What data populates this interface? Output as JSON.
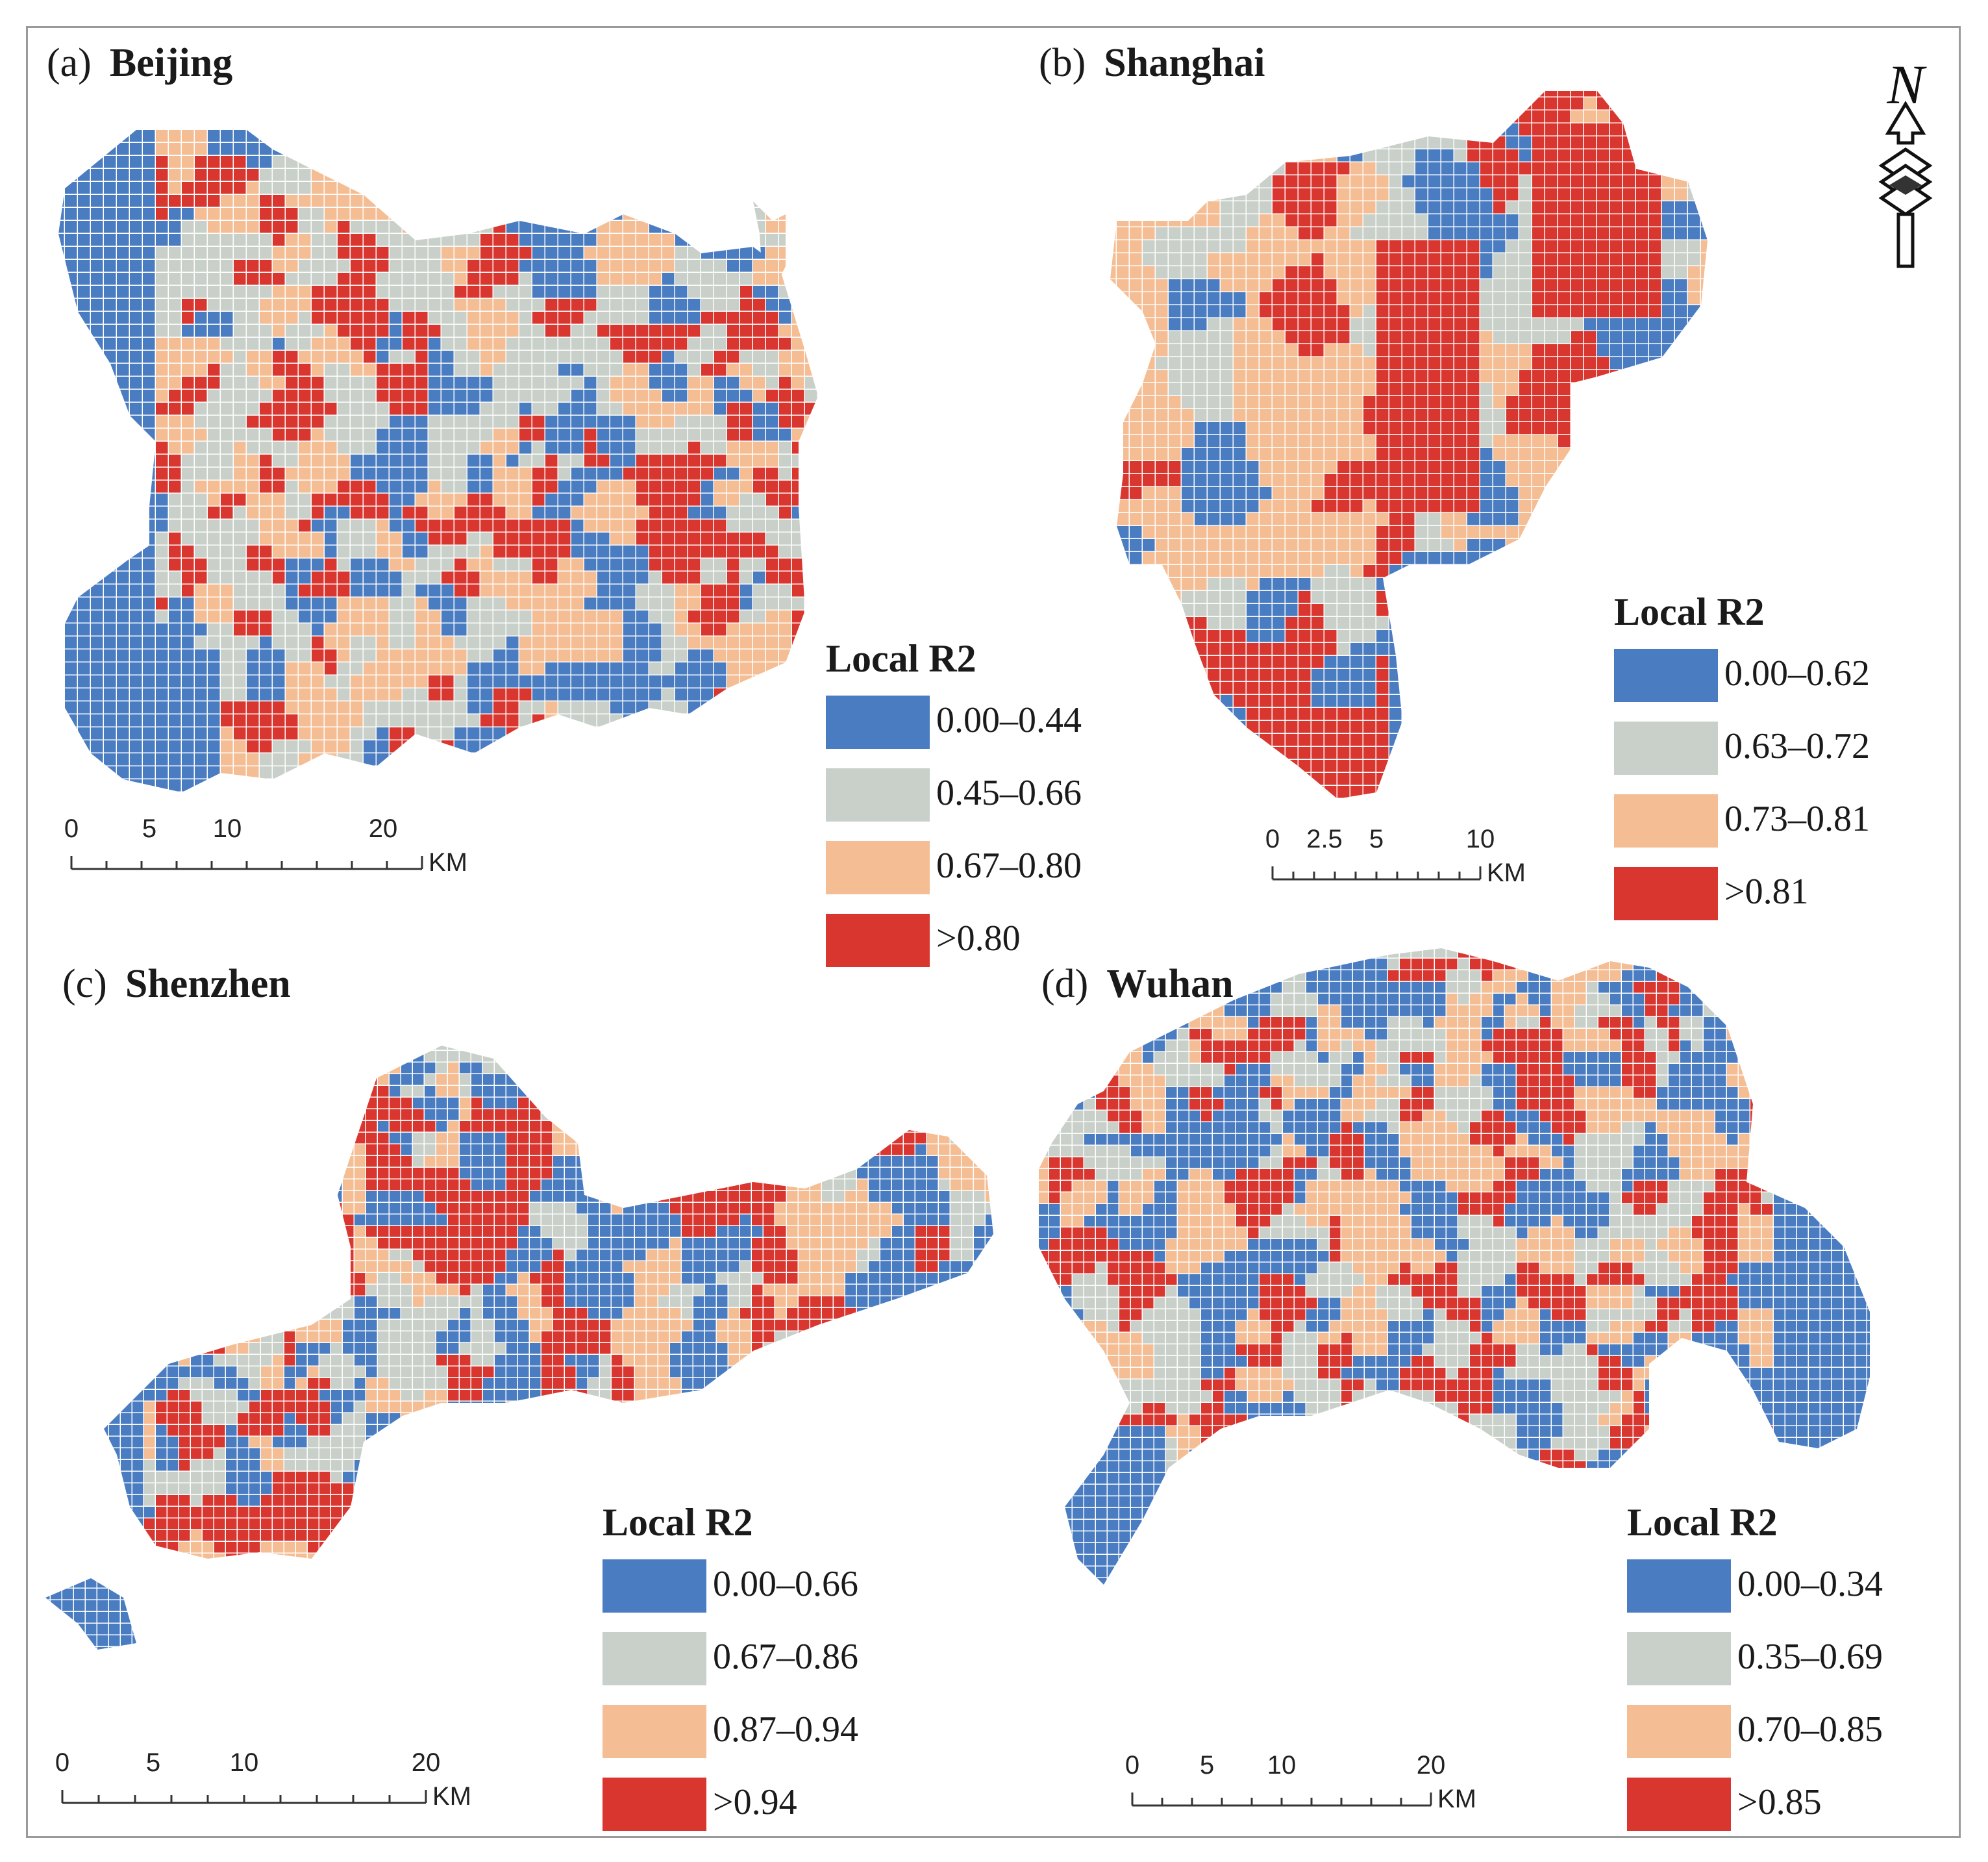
{
  "north_arrow": {
    "label": "N",
    "icon": "north-arrow-icon"
  },
  "colors": {
    "c1": "#4a7cc2",
    "c2": "#c8d0c9",
    "c3": "#f4bd93",
    "c4": "#d93630",
    "grid": "#ffffff"
  },
  "panels": [
    {
      "id": "beijing",
      "letter": "(a)",
      "city": "Beijing",
      "legend": {
        "title": "Local R2",
        "items": [
          "0.00–0.44",
          "0.45–0.66",
          "0.67–0.80",
          ">0.80"
        ]
      },
      "scale": {
        "ticks": [
          "0",
          "5",
          "10",
          "20"
        ],
        "tick_values": [
          0,
          5,
          10,
          20
        ],
        "max": 22.5,
        "unit": "KM"
      }
    },
    {
      "id": "shanghai",
      "letter": "(b)",
      "city": "Shanghai",
      "legend": {
        "title": "Local R2",
        "items": [
          "0.00–0.62",
          "0.63–0.72",
          "0.73–0.81",
          ">0.81"
        ]
      },
      "scale": {
        "ticks": [
          "0",
          "2.5",
          "5",
          "10"
        ],
        "tick_values": [
          0,
          2.5,
          5,
          10
        ],
        "max": 10,
        "unit": "KM"
      }
    },
    {
      "id": "shenzhen",
      "letter": "(c)",
      "city": "Shenzhen",
      "legend": {
        "title": "Local R2",
        "items": [
          "0.00–0.66",
          "0.67–0.86",
          "0.87–0.94",
          ">0.94"
        ]
      },
      "scale": {
        "ticks": [
          "0",
          "5",
          "10",
          "20"
        ],
        "tick_values": [
          0,
          5,
          10,
          20
        ],
        "max": 20,
        "unit": "KM"
      }
    },
    {
      "id": "wuhan",
      "letter": "(d)",
      "city": "Wuhan",
      "legend": {
        "title": "Local R2",
        "items": [
          "0.00–0.34",
          "0.35–0.69",
          "0.70–0.85",
          ">0.85"
        ]
      },
      "scale": {
        "ticks": [
          "0",
          "5",
          "10",
          "20"
        ],
        "tick_values": [
          0,
          5,
          10,
          20
        ],
        "max": 20,
        "unit": "KM"
      }
    }
  ]
}
